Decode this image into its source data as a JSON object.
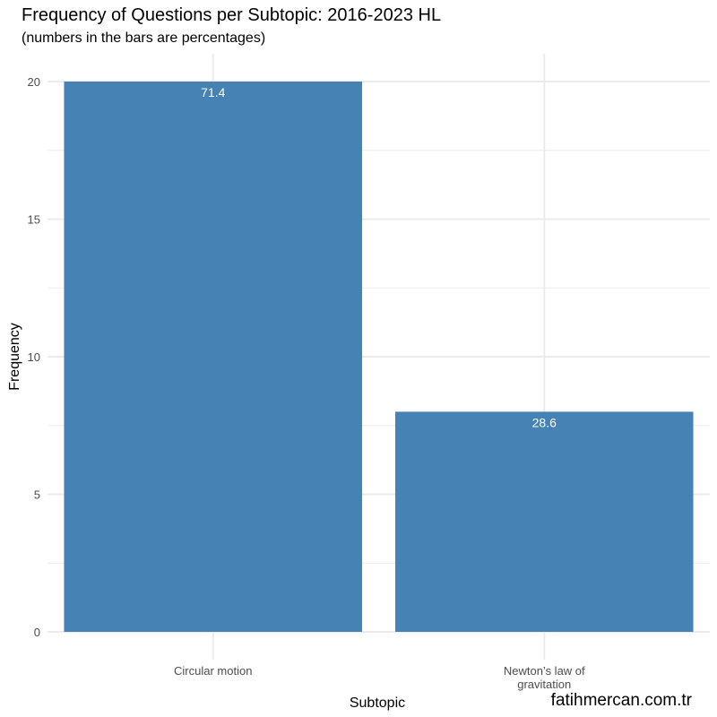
{
  "chart_data": {
    "type": "bar",
    "title": "Frequency of Questions per Subtopic: 2016-2023 HL",
    "subtitle": "(numbers in the bars are percentages)",
    "xlabel": "Subtopic",
    "ylabel": "Frequency",
    "categories": [
      [
        "Circular motion"
      ],
      [
        "Newton’s law of",
        "gravitation"
      ]
    ],
    "values": [
      20,
      8
    ],
    "bar_labels": [
      "71.4",
      "28.6"
    ],
    "ylim": [
      -0.5,
      21
    ],
    "yticks": [
      0,
      5,
      10,
      15,
      20
    ],
    "grid": true,
    "bar_color": "#4682B4",
    "grid_color": "#ebebeb"
  },
  "watermark": "fatihmercan.com.tr"
}
